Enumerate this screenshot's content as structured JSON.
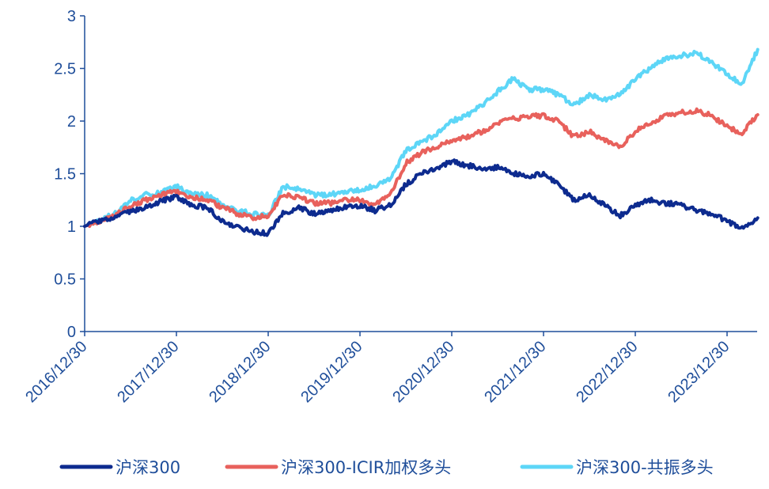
{
  "colors": {
    "axis": "#1f4e9a",
    "series": [
      "#0d2b8f",
      "#e8615c",
      "#5dd6f7"
    ]
  },
  "chart_data": {
    "type": "line",
    "title": "",
    "xlabel": "",
    "ylabel": "",
    "ylim": [
      0,
      3
    ],
    "y_ticks": [
      0,
      0.5,
      1,
      1.5,
      2,
      2.5,
      3
    ],
    "y_tick_labels": [
      "0",
      "0.5",
      "1",
      "1.5",
      "2",
      "2.5",
      "3"
    ],
    "x_tick_labels": [
      "2016/12/30",
      "2017/12/30",
      "2018/12/30",
      "2019/12/30",
      "2020/12/30",
      "2021/12/30",
      "2022/12/30",
      "2023/12/30"
    ],
    "x": [
      "2016/12/30",
      "2017/02/28",
      "2017/04/30",
      "2017/06/30",
      "2017/08/31",
      "2017/10/31",
      "2017/12/30",
      "2018/02/28",
      "2018/04/30",
      "2018/06/30",
      "2018/08/31",
      "2018/10/31",
      "2018/12/30",
      "2019/02/28",
      "2019/04/30",
      "2019/06/30",
      "2019/08/31",
      "2019/10/31",
      "2019/12/30",
      "2020/02/29",
      "2020/04/30",
      "2020/06/30",
      "2020/08/31",
      "2020/10/31",
      "2020/12/30",
      "2021/02/28",
      "2021/04/30",
      "2021/06/30",
      "2021/08/31",
      "2021/10/31",
      "2021/12/30",
      "2022/02/28",
      "2022/04/30",
      "2022/06/30",
      "2022/08/31",
      "2022/10/31",
      "2022/12/30",
      "2023/02/28",
      "2023/04/30",
      "2023/06/30",
      "2023/08/31",
      "2023/10/31",
      "2023/12/30",
      "2024/02/29",
      "2024/04/30"
    ],
    "series": [
      {
        "name": "沪深300",
        "values": [
          1.0,
          1.05,
          1.08,
          1.14,
          1.18,
          1.24,
          1.28,
          1.2,
          1.18,
          1.05,
          0.99,
          0.95,
          0.93,
          1.12,
          1.18,
          1.12,
          1.15,
          1.18,
          1.2,
          1.15,
          1.2,
          1.4,
          1.5,
          1.55,
          1.62,
          1.58,
          1.55,
          1.56,
          1.5,
          1.48,
          1.5,
          1.4,
          1.25,
          1.3,
          1.2,
          1.1,
          1.2,
          1.25,
          1.22,
          1.2,
          1.15,
          1.12,
          1.05,
          0.98,
          1.08
        ]
      },
      {
        "name": "沪深300-ICIR加权多头",
        "values": [
          1.0,
          1.05,
          1.1,
          1.2,
          1.25,
          1.3,
          1.33,
          1.28,
          1.25,
          1.18,
          1.12,
          1.08,
          1.1,
          1.3,
          1.28,
          1.22,
          1.22,
          1.25,
          1.25,
          1.2,
          1.3,
          1.6,
          1.7,
          1.75,
          1.82,
          1.85,
          1.9,
          1.98,
          2.02,
          2.05,
          2.05,
          2.0,
          1.85,
          1.9,
          1.82,
          1.75,
          1.9,
          1.98,
          2.05,
          2.08,
          2.1,
          2.05,
          1.95,
          1.88,
          2.06
        ]
      },
      {
        "name": "沪深300-共振多头",
        "values": [
          1.0,
          1.06,
          1.12,
          1.25,
          1.3,
          1.32,
          1.38,
          1.3,
          1.3,
          1.2,
          1.15,
          1.12,
          1.1,
          1.38,
          1.35,
          1.3,
          1.3,
          1.32,
          1.35,
          1.38,
          1.45,
          1.72,
          1.8,
          1.88,
          2.0,
          2.05,
          2.15,
          2.28,
          2.4,
          2.3,
          2.3,
          2.25,
          2.15,
          2.25,
          2.2,
          2.25,
          2.4,
          2.5,
          2.6,
          2.62,
          2.65,
          2.55,
          2.45,
          2.35,
          2.68
        ]
      }
    ],
    "grid": false,
    "legend_position": "bottom"
  }
}
